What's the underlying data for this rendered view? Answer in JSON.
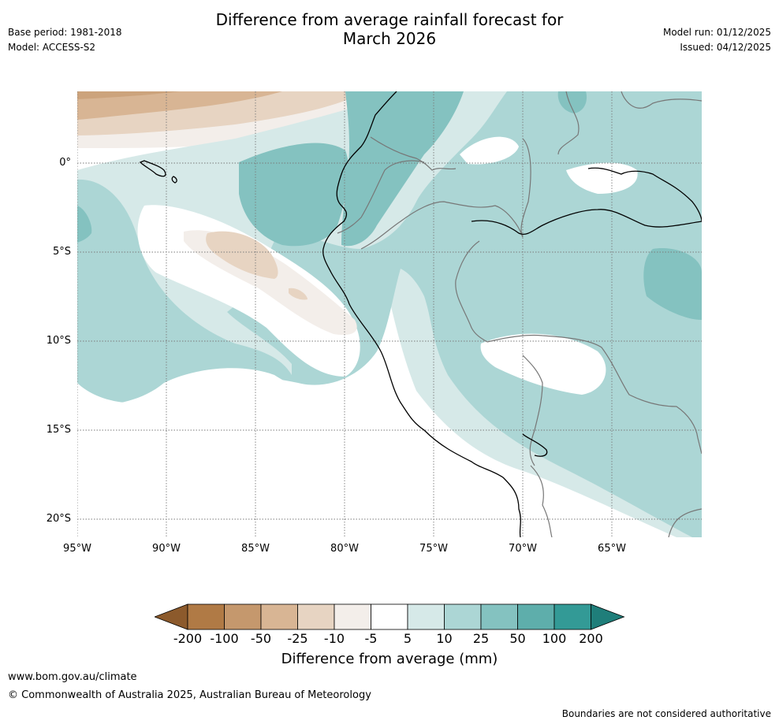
{
  "header": {
    "title_line1": "Difference from average rainfall forecast for",
    "title_line2": "March 2026",
    "base_period": "Base period: 1981-2018",
    "model": "Model: ACCESS-S2",
    "model_run": "Model run: 01/12/2025",
    "issued": "Issued: 04/12/2025"
  },
  "axes": {
    "lat_labels": [
      "0°",
      "5°S",
      "10°S",
      "15°S",
      "20°S"
    ],
    "lon_labels": [
      "95°W",
      "90°W",
      "85°W",
      "80°W",
      "75°W",
      "70°W",
      "65°W"
    ]
  },
  "legend": {
    "title": "Difference from average (mm)",
    "ticks": [
      "-200",
      "-100",
      "-50",
      "-25",
      "-10",
      "-5",
      "5",
      "10",
      "25",
      "50",
      "100",
      "200"
    ],
    "colors": [
      "#8c5a2c",
      "#b07a45",
      "#c5986d",
      "#d8b594",
      "#e7d4c2",
      "#f3eeea",
      "#ffffff",
      "#d6e9e8",
      "#acd6d5",
      "#84c2c0",
      "#5eaeab",
      "#339a96",
      "#1f7e7a"
    ]
  },
  "footer": {
    "url": "www.bom.gov.au/climate",
    "copyright": "© Commonwealth of Australia 2025, Australian Bureau of Meteorology",
    "disclaimer": "Boundaries are not considered authoritative"
  }
}
